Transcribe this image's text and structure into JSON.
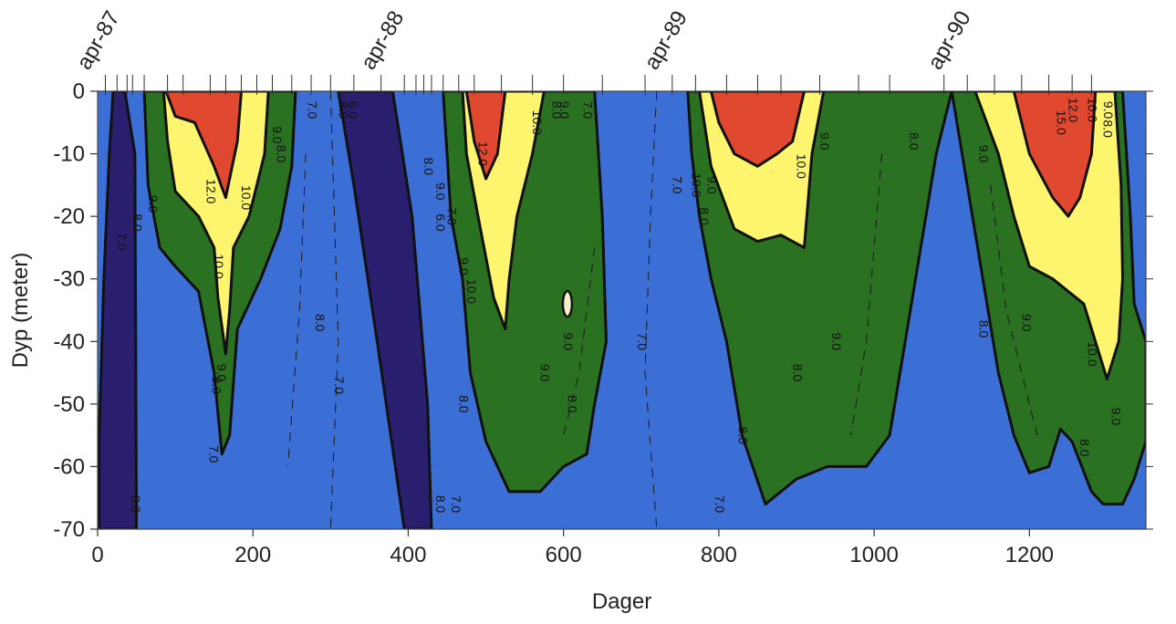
{
  "chart_data": {
    "type": "heatmap",
    "subtype": "filled-contour",
    "title": "",
    "xlabel": "Dager",
    "ylabel": "Dyp (meter)",
    "xlim": [
      0,
      1350
    ],
    "ylim": [
      -70,
      0
    ],
    "x_ticks": [
      0,
      200,
      400,
      600,
      800,
      1000,
      1200
    ],
    "y_ticks": [
      0,
      -10,
      -20,
      -30,
      -40,
      -50,
      -60,
      -70
    ],
    "x_tick_labels": [
      "0",
      "200",
      "400",
      "600",
      "800",
      "1000",
      "1200"
    ],
    "y_tick_labels": [
      "0",
      "-10",
      "-20",
      "-30",
      "-40",
      "-50",
      "-60",
      "-70"
    ],
    "top_axis_labels": [
      {
        "x": 0,
        "label": "apr-87"
      },
      {
        "x": 366,
        "label": "apr-88"
      },
      {
        "x": 731,
        "label": "apr-89"
      },
      {
        "x": 1096,
        "label": "apr-90"
      }
    ],
    "sampling_days": [
      10,
      25,
      38,
      45,
      60,
      90,
      110,
      145,
      165,
      185,
      205,
      225,
      250,
      275,
      300,
      330,
      365,
      395,
      410,
      420,
      430,
      445,
      465,
      485,
      520,
      560,
      600,
      650,
      705,
      740,
      770,
      810,
      850,
      880,
      930,
      980,
      1020,
      1090,
      1120,
      1155,
      1190,
      1225,
      1255,
      1280
    ],
    "grid": false,
    "legend": "none",
    "levels": [
      {
        "range": "< 7.0",
        "color": "#2a1f6e"
      },
      {
        "range": "7.0 - 8.0",
        "color": "#3c6fd6"
      },
      {
        "range": "8.0 - 10.0",
        "color": "#2a7222"
      },
      {
        "range": "10.0 - 12.0",
        "color": "#fdf56d"
      },
      {
        "range": "> 12.0",
        "color": "#e0492f"
      }
    ],
    "regions": [
      {
        "level": "< 7.0",
        "points": [
          [
            20,
            0
          ],
          [
            35,
            0
          ],
          [
            48,
            -10
          ],
          [
            50,
            -70
          ],
          [
            2,
            -70
          ],
          [
            2,
            -55
          ],
          [
            8,
            -30
          ],
          [
            15,
            -10
          ]
        ]
      },
      {
        "level": "< 7.0",
        "points": [
          [
            310,
            0
          ],
          [
            380,
            0
          ],
          [
            405,
            -20
          ],
          [
            425,
            -50
          ],
          [
            430,
            -70
          ],
          [
            395,
            -70
          ],
          [
            360,
            -40
          ],
          [
            330,
            -15
          ]
        ]
      },
      {
        "level": "8.0 - 10.0",
        "points": [
          [
            60,
            0
          ],
          [
            255,
            0
          ],
          [
            250,
            -12
          ],
          [
            235,
            -22
          ],
          [
            210,
            -30
          ],
          [
            180,
            -38
          ],
          [
            170,
            -55
          ],
          [
            160,
            -58
          ],
          [
            150,
            -45
          ],
          [
            130,
            -32
          ],
          [
            100,
            -28
          ],
          [
            80,
            -25
          ],
          [
            65,
            -15
          ]
        ]
      },
      {
        "level": "10.0 - 12.0",
        "points": [
          [
            85,
            0
          ],
          [
            220,
            0
          ],
          [
            215,
            -10
          ],
          [
            195,
            -20
          ],
          [
            175,
            -25
          ],
          [
            170,
            -35
          ],
          [
            165,
            -42
          ],
          [
            155,
            -33
          ],
          [
            150,
            -25
          ],
          [
            130,
            -20
          ],
          [
            100,
            -16
          ],
          [
            90,
            -8
          ]
        ]
      },
      {
        "level": "> 12.0",
        "points": [
          [
            88,
            0
          ],
          [
            185,
            0
          ],
          [
            180,
            -8
          ],
          [
            165,
            -17
          ],
          [
            150,
            -12
          ],
          [
            125,
            -5
          ],
          [
            100,
            -4
          ]
        ]
      },
      {
        "level": "8.0 - 10.0",
        "points": [
          [
            445,
            0
          ],
          [
            640,
            0
          ],
          [
            650,
            -20
          ],
          [
            655,
            -40
          ],
          [
            640,
            -50
          ],
          [
            630,
            -58
          ],
          [
            600,
            -60
          ],
          [
            570,
            -64
          ],
          [
            530,
            -64
          ],
          [
            500,
            -56
          ],
          [
            480,
            -45
          ],
          [
            470,
            -30
          ],
          [
            455,
            -20
          ]
        ]
      },
      {
        "level": "10.0 - 12.0",
        "points": [
          [
            470,
            0
          ],
          [
            575,
            0
          ],
          [
            560,
            -10
          ],
          [
            540,
            -20
          ],
          [
            530,
            -30
          ],
          [
            525,
            -38
          ],
          [
            510,
            -33
          ],
          [
            490,
            -20
          ],
          [
            475,
            -10
          ]
        ]
      },
      {
        "level": "> 12.0",
        "points": [
          [
            475,
            0
          ],
          [
            525,
            0
          ],
          [
            515,
            -10
          ],
          [
            500,
            -14
          ],
          [
            485,
            -8
          ]
        ]
      },
      {
        "level": "8.0 - 10.0",
        "points": [
          [
            760,
            0
          ],
          [
            1100,
            0
          ],
          [
            1080,
            -10
          ],
          [
            1060,
            -25
          ],
          [
            1040,
            -40
          ],
          [
            1020,
            -55
          ],
          [
            990,
            -60
          ],
          [
            940,
            -60
          ],
          [
            900,
            -62
          ],
          [
            860,
            -66
          ],
          [
            830,
            -55
          ],
          [
            810,
            -40
          ],
          [
            790,
            -30
          ],
          [
            775,
            -20
          ],
          [
            765,
            -10
          ]
        ]
      },
      {
        "level": "10.0 - 12.0",
        "points": [
          [
            775,
            0
          ],
          [
            935,
            0
          ],
          [
            920,
            -10
          ],
          [
            910,
            -25
          ],
          [
            880,
            -23
          ],
          [
            850,
            -24
          ],
          [
            820,
            -22
          ],
          [
            790,
            -12
          ]
        ]
      },
      {
        "level": "> 12.0",
        "points": [
          [
            790,
            0
          ],
          [
            910,
            0
          ],
          [
            895,
            -8
          ],
          [
            875,
            -10
          ],
          [
            850,
            -12
          ],
          [
            820,
            -10
          ],
          [
            800,
            -5
          ]
        ]
      },
      {
        "level": "8.0 - 10.0",
        "points": [
          [
            1100,
            0
          ],
          [
            1320,
            0
          ],
          [
            1330,
            -20
          ],
          [
            1335,
            -34
          ],
          [
            1350,
            -40
          ],
          [
            1350,
            -56
          ],
          [
            1335,
            -62
          ],
          [
            1320,
            -66
          ],
          [
            1295,
            -66
          ],
          [
            1280,
            -64
          ],
          [
            1255,
            -56
          ],
          [
            1240,
            -54
          ],
          [
            1225,
            -60
          ],
          [
            1200,
            -61
          ],
          [
            1180,
            -55
          ],
          [
            1160,
            -45
          ],
          [
            1140,
            -30
          ],
          [
            1120,
            -15
          ]
        ]
      },
      {
        "level": "10.0 - 12.0",
        "points": [
          [
            1130,
            0
          ],
          [
            1310,
            0
          ],
          [
            1318,
            -15
          ],
          [
            1320,
            -30
          ],
          [
            1315,
            -40
          ],
          [
            1300,
            -46
          ],
          [
            1290,
            -42
          ],
          [
            1270,
            -34
          ],
          [
            1250,
            -32
          ],
          [
            1230,
            -30
          ],
          [
            1200,
            -28
          ],
          [
            1180,
            -20
          ],
          [
            1160,
            -10
          ]
        ]
      },
      {
        "level": "> 12.0",
        "points": [
          [
            1180,
            0
          ],
          [
            1285,
            0
          ],
          [
            1280,
            -10
          ],
          [
            1265,
            -17
          ],
          [
            1250,
            -20
          ],
          [
            1230,
            -17
          ],
          [
            1200,
            -10
          ],
          [
            1190,
            -5
          ]
        ]
      }
    ],
    "contour_labels": [
      {
        "x": 145,
        "y": -16,
        "text": "12.0"
      },
      {
        "x": 190,
        "y": -17,
        "text": "10.0"
      },
      {
        "x": 230,
        "y": -7,
        "text": "9.0"
      },
      {
        "x": 235,
        "y": -10,
        "text": "8.0"
      },
      {
        "x": 70,
        "y": -18,
        "text": "9.0"
      },
      {
        "x": 50,
        "y": -21,
        "text": "8.0"
      },
      {
        "x": 30,
        "y": -24,
        "text": "7.0"
      },
      {
        "x": 155,
        "y": -28,
        "text": "10.0"
      },
      {
        "x": 158,
        "y": -45,
        "text": "9.0"
      },
      {
        "x": 152,
        "y": -47,
        "text": "8.0"
      },
      {
        "x": 148,
        "y": -58,
        "text": "7.0"
      },
      {
        "x": 48,
        "y": -66,
        "text": "8.0"
      },
      {
        "x": 275,
        "y": -3,
        "text": "7.0"
      },
      {
        "x": 315,
        "y": -3,
        "text": "8.0"
      },
      {
        "x": 328,
        "y": -3,
        "text": "6.0"
      },
      {
        "x": 425,
        "y": -12,
        "text": "8.0"
      },
      {
        "x": 440,
        "y": -16,
        "text": "9.0"
      },
      {
        "x": 455,
        "y": -20,
        "text": "7.0"
      },
      {
        "x": 440,
        "y": -21,
        "text": "6.0"
      },
      {
        "x": 470,
        "y": -28,
        "text": "9.0"
      },
      {
        "x": 480,
        "y": -32,
        "text": "10.0"
      },
      {
        "x": 495,
        "y": -10,
        "text": "12.0"
      },
      {
        "x": 565,
        "y": -5,
        "text": "10.0"
      },
      {
        "x": 590,
        "y": -3,
        "text": "8.0"
      },
      {
        "x": 600,
        "y": -3,
        "text": "9.0"
      },
      {
        "x": 630,
        "y": -3,
        "text": "7.0"
      },
      {
        "x": 575,
        "y": -45,
        "text": "9.0"
      },
      {
        "x": 470,
        "y": -50,
        "text": "8.0"
      },
      {
        "x": 610,
        "y": -50,
        "text": "8.0"
      },
      {
        "x": 440,
        "y": -66,
        "text": "8.0"
      },
      {
        "x": 460,
        "y": -66,
        "text": "7.0"
      },
      {
        "x": 285,
        "y": -37,
        "text": "8.0"
      },
      {
        "x": 310,
        "y": -47,
        "text": "7.0"
      },
      {
        "x": 605,
        "y": -40,
        "text": "9.0"
      },
      {
        "x": 700,
        "y": -40,
        "text": "7.0"
      },
      {
        "x": 745,
        "y": -15,
        "text": "7.0"
      },
      {
        "x": 770,
        "y": -15,
        "text": "10.0"
      },
      {
        "x": 790,
        "y": -15,
        "text": "9.0"
      },
      {
        "x": 780,
        "y": -20,
        "text": "8.0"
      },
      {
        "x": 935,
        "y": -8,
        "text": "9.0"
      },
      {
        "x": 905,
        "y": -12,
        "text": "10.0"
      },
      {
        "x": 950,
        "y": -40,
        "text": "9.0"
      },
      {
        "x": 900,
        "y": -45,
        "text": "8.0"
      },
      {
        "x": 830,
        "y": -55,
        "text": "8.0"
      },
      {
        "x": 800,
        "y": -66,
        "text": "7.0"
      },
      {
        "x": 1050,
        "y": -8,
        "text": "8.0"
      },
      {
        "x": 1140,
        "y": -10,
        "text": "9.0"
      },
      {
        "x": 1240,
        "y": -5,
        "text": "15.0"
      },
      {
        "x": 1255,
        "y": -3,
        "text": "12.0"
      },
      {
        "x": 1280,
        "y": -3,
        "text": "10.0"
      },
      {
        "x": 1300,
        "y": -3,
        "text": "9.0"
      },
      {
        "x": 1300,
        "y": -6,
        "text": "8.0"
      },
      {
        "x": 1140,
        "y": -38,
        "text": "8.0"
      },
      {
        "x": 1195,
        "y": -37,
        "text": "9.0"
      },
      {
        "x": 1280,
        "y": -42,
        "text": "10.0"
      },
      {
        "x": 1310,
        "y": -52,
        "text": "9.0"
      },
      {
        "x": 1270,
        "y": -57,
        "text": "8.0"
      }
    ],
    "dashed_isolines": [
      [
        [
          300,
          0
        ],
        [
          305,
          -20
        ],
        [
          310,
          -40
        ],
        [
          300,
          -70
        ]
      ],
      [
        [
          268,
          -10
        ],
        [
          260,
          -35
        ],
        [
          245,
          -60
        ]
      ],
      [
        [
          720,
          0
        ],
        [
          712,
          -20
        ],
        [
          705,
          -45
        ],
        [
          720,
          -70
        ]
      ],
      [
        [
          1010,
          -10
        ],
        [
          990,
          -40
        ],
        [
          970,
          -55
        ]
      ],
      [
        [
          1150,
          -15
        ],
        [
          1170,
          -35
        ],
        [
          1210,
          -55
        ]
      ],
      [
        [
          640,
          -25
        ],
        [
          620,
          -45
        ],
        [
          600,
          -55
        ]
      ]
    ],
    "isolated_contour": {
      "x": 605,
      "y": -34,
      "text": ""
    }
  }
}
